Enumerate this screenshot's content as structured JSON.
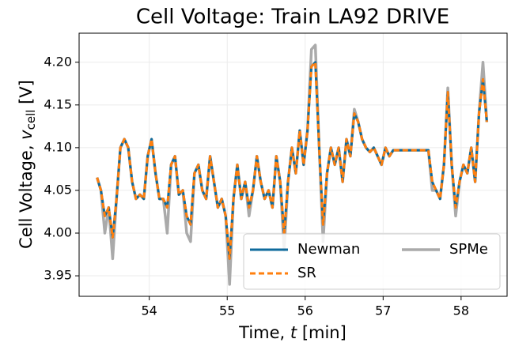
{
  "chart_data": {
    "type": "line",
    "title": "Cell Voltage: Train LA92 DRIVE",
    "xlabel": {
      "text": "Time, ",
      "var": "t",
      "unit": "[min]"
    },
    "ylabel": {
      "text": "Cell Voltage, ",
      "var": "v",
      "sub": "cell",
      "unit": "[V]"
    },
    "x": [
      53.33,
      53.38,
      53.43,
      53.48,
      53.53,
      53.58,
      53.63,
      53.68,
      53.73,
      53.78,
      53.83,
      53.88,
      53.93,
      53.98,
      54.03,
      54.08,
      54.13,
      54.18,
      54.23,
      54.28,
      54.33,
      54.38,
      54.43,
      54.48,
      54.53,
      54.58,
      54.63,
      54.68,
      54.73,
      54.78,
      54.83,
      54.88,
      54.93,
      54.98,
      55.03,
      55.08,
      55.13,
      55.18,
      55.23,
      55.28,
      55.33,
      55.38,
      55.43,
      55.48,
      55.53,
      55.58,
      55.63,
      55.68,
      55.73,
      55.78,
      55.83,
      55.88,
      55.93,
      55.98,
      56.03,
      56.08,
      56.13,
      56.18,
      56.23,
      56.28,
      56.33,
      56.38,
      56.43,
      56.48,
      56.53,
      56.58,
      56.63,
      56.68,
      56.73,
      56.78,
      56.83,
      56.88,
      56.93,
      56.98,
      57.03,
      57.08,
      57.13,
      57.18,
      57.23,
      57.28,
      57.33,
      57.38,
      57.43,
      57.48,
      57.53,
      57.58,
      57.63,
      57.68,
      57.73,
      57.78,
      57.83,
      57.88,
      57.93,
      57.98,
      58.03,
      58.08,
      58.13,
      58.18,
      58.23,
      58.28,
      58.33
    ],
    "series": [
      {
        "name": "Newman",
        "color": "#0f6b9c",
        "dash": false,
        "width": 3,
        "values": [
          4.065,
          4.05,
          4.02,
          4.03,
          3.995,
          4.04,
          4.1,
          4.11,
          4.1,
          4.06,
          4.04,
          4.045,
          4.04,
          4.09,
          4.11,
          4.07,
          4.04,
          4.04,
          4.03,
          4.08,
          4.09,
          4.045,
          4.05,
          4.02,
          4.01,
          4.07,
          4.08,
          4.05,
          4.04,
          4.09,
          4.06,
          4.03,
          4.04,
          4.02,
          3.97,
          4.04,
          4.08,
          4.04,
          4.06,
          4.03,
          4.05,
          4.09,
          4.06,
          4.04,
          4.05,
          4.03,
          4.09,
          4.06,
          4.0,
          4.06,
          4.1,
          4.07,
          4.12,
          4.08,
          4.12,
          4.195,
          4.2,
          4.1,
          4.01,
          4.07,
          4.1,
          4.08,
          4.1,
          4.06,
          4.11,
          4.09,
          4.14,
          4.13,
          4.11,
          4.1,
          4.095,
          4.1,
          4.09,
          4.08,
          4.1,
          4.09,
          4.097,
          4.097,
          4.097,
          4.097,
          4.097,
          4.097,
          4.097,
          4.097,
          4.097,
          4.097,
          4.06,
          4.05,
          4.04,
          4.08,
          4.165,
          4.08,
          4.03,
          4.06,
          4.08,
          4.07,
          4.1,
          4.06,
          4.14,
          4.18,
          4.13
        ]
      },
      {
        "name": "SR",
        "color": "#ff7f0e",
        "dash": true,
        "width": 3,
        "values": [
          4.065,
          4.05,
          4.02,
          4.03,
          3.995,
          4.04,
          4.1,
          4.11,
          4.1,
          4.06,
          4.04,
          4.045,
          4.04,
          4.09,
          4.11,
          4.07,
          4.04,
          4.04,
          4.03,
          4.08,
          4.09,
          4.045,
          4.05,
          4.02,
          4.01,
          4.07,
          4.08,
          4.05,
          4.04,
          4.09,
          4.06,
          4.03,
          4.04,
          4.02,
          3.97,
          4.04,
          4.08,
          4.04,
          4.06,
          4.03,
          4.05,
          4.09,
          4.06,
          4.04,
          4.05,
          4.03,
          4.09,
          4.06,
          4.0,
          4.06,
          4.1,
          4.07,
          4.12,
          4.08,
          4.12,
          4.195,
          4.2,
          4.1,
          4.01,
          4.07,
          4.1,
          4.08,
          4.1,
          4.06,
          4.11,
          4.09,
          4.14,
          4.13,
          4.11,
          4.1,
          4.095,
          4.1,
          4.09,
          4.08,
          4.1,
          4.09,
          4.097,
          4.097,
          4.097,
          4.097,
          4.097,
          4.097,
          4.097,
          4.097,
          4.097,
          4.097,
          4.06,
          4.05,
          4.04,
          4.08,
          4.165,
          4.08,
          4.03,
          4.06,
          4.08,
          4.07,
          4.1,
          4.06,
          4.14,
          4.18,
          4.13
        ]
      },
      {
        "name": "SPMe",
        "color": "#aaaaaa",
        "dash": false,
        "width": 3.5,
        "values": [
          4.065,
          4.05,
          4.0,
          4.03,
          3.97,
          4.04,
          4.1,
          4.11,
          4.1,
          4.06,
          4.04,
          4.045,
          4.04,
          4.09,
          4.11,
          4.07,
          4.04,
          4.04,
          4.0,
          4.08,
          4.09,
          4.045,
          4.05,
          4.0,
          3.99,
          4.07,
          4.08,
          4.05,
          4.04,
          4.09,
          4.06,
          4.03,
          4.04,
          4.02,
          3.94,
          4.04,
          4.08,
          4.04,
          4.06,
          4.02,
          4.05,
          4.09,
          4.06,
          4.04,
          4.05,
          4.03,
          4.09,
          4.06,
          3.98,
          4.06,
          4.1,
          4.07,
          4.12,
          4.08,
          4.12,
          4.215,
          4.22,
          4.1,
          3.99,
          4.07,
          4.1,
          4.08,
          4.1,
          4.06,
          4.11,
          4.09,
          4.145,
          4.13,
          4.11,
          4.1,
          4.095,
          4.1,
          4.09,
          4.08,
          4.1,
          4.09,
          4.097,
          4.097,
          4.097,
          4.097,
          4.097,
          4.097,
          4.097,
          4.097,
          4.097,
          4.097,
          4.05,
          4.05,
          4.04,
          4.08,
          4.17,
          4.08,
          4.02,
          4.06,
          4.08,
          4.07,
          4.1,
          4.06,
          4.14,
          4.2,
          4.13
        ]
      }
    ],
    "draw_order": [
      2,
      0,
      1
    ],
    "xlim": [
      53.1,
      58.59
    ],
    "ylim": [
      3.926,
      4.234
    ],
    "xticks": [
      54,
      55,
      56,
      57,
      58
    ],
    "yticks": [
      3.95,
      {
        "value": 4.0,
        "label": "4.00"
      },
      4.05,
      {
        "value": 4.1,
        "label": "4.10"
      },
      4.15,
      {
        "value": 4.2,
        "label": "4.20"
      }
    ],
    "grid": true,
    "legend_loc": "lower right",
    "legend_ncol": 2
  }
}
